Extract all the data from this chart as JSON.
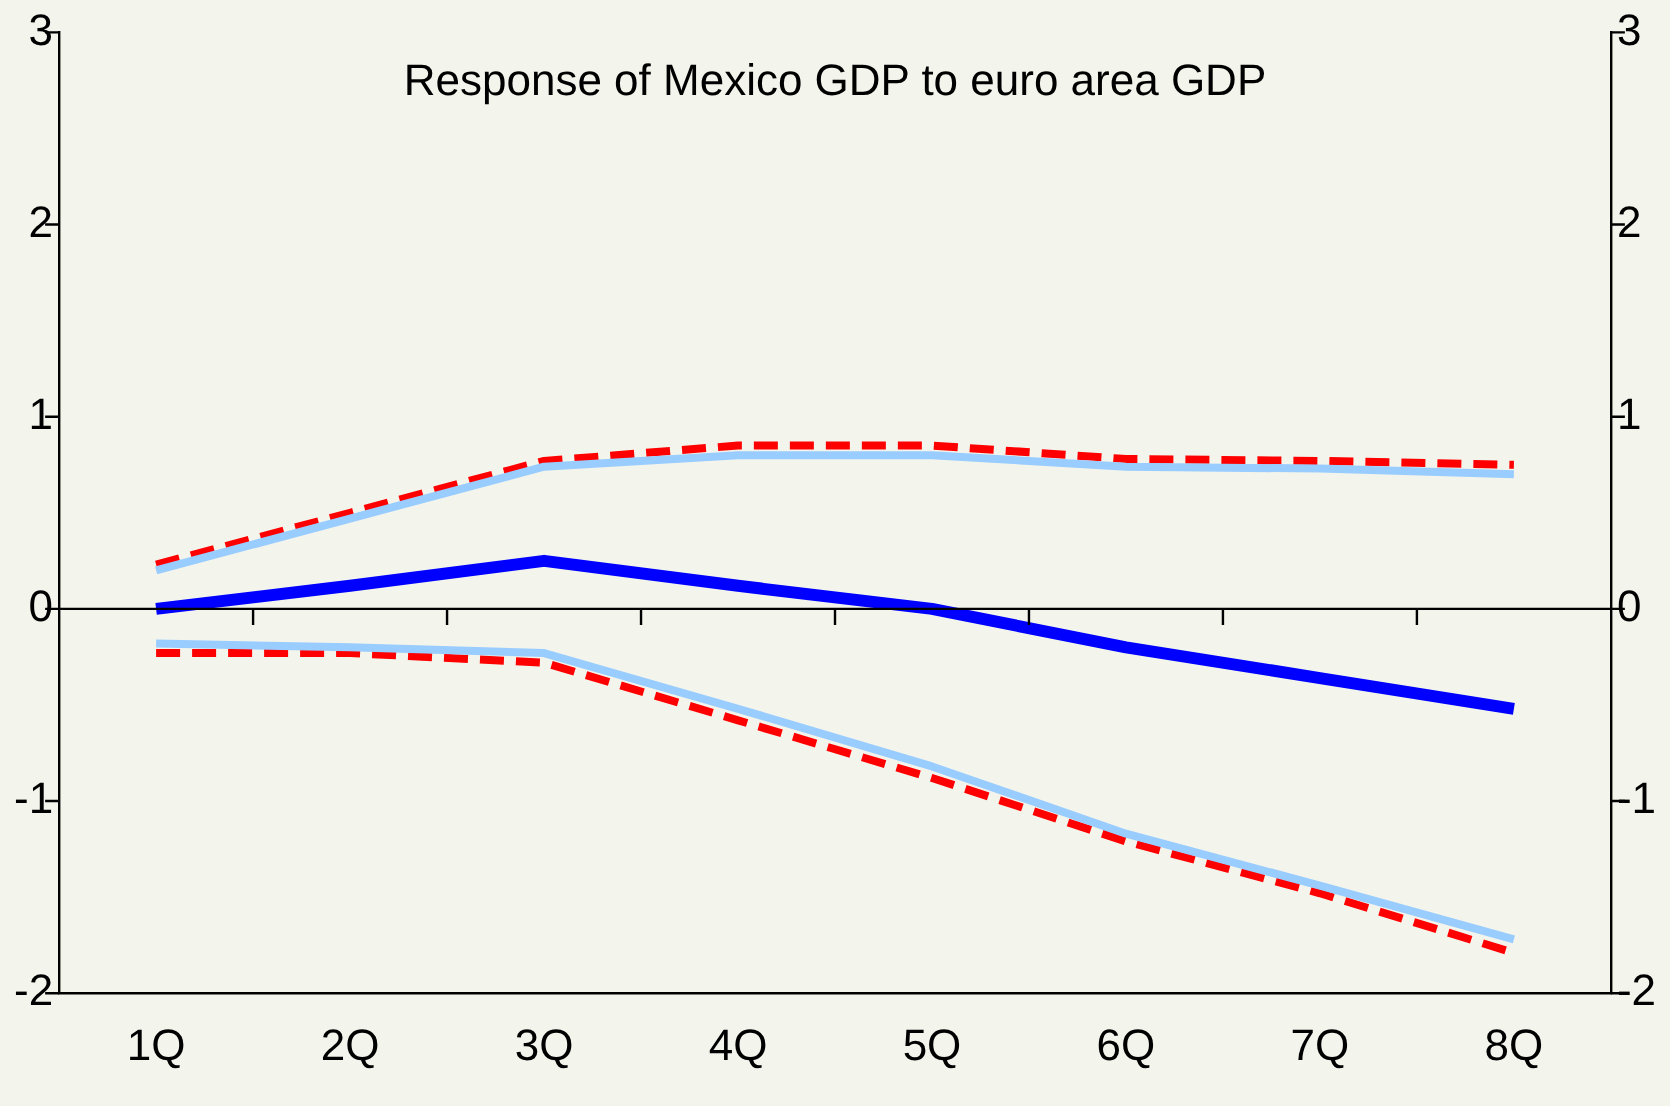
{
  "chart_data": {
    "type": "line",
    "title": "Response of Mexico GDP to euro area GDP",
    "categories": [
      "1Q",
      "2Q",
      "3Q",
      "4Q",
      "5Q",
      "6Q",
      "7Q",
      "8Q"
    ],
    "series": [
      {
        "color": "#99ccff",
        "values": [
          0.2,
          0.47,
          0.74,
          0.8,
          0.8,
          0.74,
          0.73,
          0.7
        ]
      },
      {
        "color": "#99ccff",
        "values": [
          -0.18,
          -0.2,
          -0.23,
          -0.52,
          -0.82,
          -1.17,
          -1.44,
          -1.72
        ]
      },
      {
        "color": "#ff0000",
        "line_style": "dashed",
        "values": [
          0.23,
          0.5,
          0.77,
          0.85,
          0.85,
          0.78,
          0.77,
          0.75
        ]
      },
      {
        "color": "#ff0000",
        "line_style": "dashed",
        "values": [
          -0.23,
          -0.23,
          -0.28,
          -0.58,
          -0.88,
          -1.21,
          -1.48,
          -1.79
        ]
      },
      {
        "color": "#0000ff",
        "values": [
          0,
          0.12,
          0.25,
          0.12,
          0,
          -0.2,
          -0.36,
          -0.52
        ]
      }
    ],
    "ylim": [
      -2,
      3
    ],
    "yticks": [
      -2,
      -1,
      0,
      1,
      2,
      3
    ],
    "y2lim": [
      -2,
      3
    ],
    "y2ticks": [
      -2,
      -1,
      0,
      1,
      2,
      3
    ],
    "legend": false,
    "marker": "none",
    "line_style": "solid"
  }
}
